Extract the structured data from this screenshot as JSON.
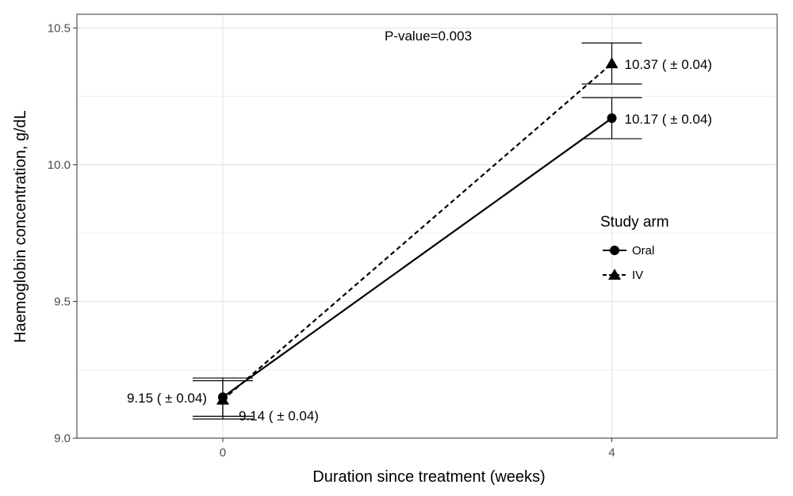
{
  "chart_data": {
    "type": "line",
    "xlabel": "Duration since treatment (weeks)",
    "ylabel": "Haemoglobin concentration, g/dL",
    "xlim": [
      -1.5,
      5.7
    ],
    "ylim": [
      9.0,
      10.55
    ],
    "x_ticks": [
      0,
      4
    ],
    "x_tick_labels": [
      "0",
      "4"
    ],
    "y_ticks": [
      9.0,
      9.5,
      10.0,
      10.5
    ],
    "y_tick_labels": [
      "9.0",
      "9.5",
      "10.0",
      "10.5"
    ],
    "grid": true,
    "annotation": "P-value=0.003",
    "legend": {
      "title": "Study arm",
      "position": "right"
    },
    "series": [
      {
        "name": "Oral",
        "marker": "circle",
        "line_style": "solid",
        "x": [
          0,
          4
        ],
        "y": [
          9.15,
          10.17
        ],
        "error": [
          0.07,
          0.075
        ],
        "labels": [
          "9.15 ( ± 0.04)",
          "10.17 ( ± 0.04)"
        ]
      },
      {
        "name": "IV",
        "marker": "triangle",
        "line_style": "dashed",
        "x": [
          0,
          4
        ],
        "y": [
          9.14,
          10.37
        ],
        "error": [
          0.07,
          0.075
        ],
        "labels": [
          "9.14 ( ± 0.04)",
          "10.37 ( ± 0.04)"
        ]
      }
    ]
  }
}
